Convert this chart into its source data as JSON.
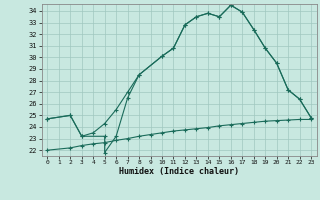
{
  "title": "",
  "xlabel": "Humidex (Indice chaleur)",
  "xlim": [
    -0.5,
    23.5
  ],
  "ylim": [
    21.5,
    34.6
  ],
  "xticks": [
    0,
    1,
    2,
    3,
    4,
    5,
    6,
    7,
    8,
    9,
    10,
    11,
    12,
    13,
    14,
    15,
    16,
    17,
    18,
    19,
    20,
    21,
    22,
    23
  ],
  "yticks": [
    22,
    23,
    24,
    25,
    26,
    27,
    28,
    29,
    30,
    31,
    32,
    33,
    34
  ],
  "background_color": "#c8e8e0",
  "grid_color": "#a0c8c0",
  "line_color": "#1a6b5a",
  "line1_x": [
    0,
    2,
    3,
    5,
    5,
    6,
    7,
    8,
    10,
    11,
    12,
    13,
    14,
    15,
    16,
    17,
    18,
    19,
    20,
    21,
    22,
    23
  ],
  "line1_y": [
    24.7,
    25.0,
    23.2,
    23.2,
    21.8,
    23.2,
    26.5,
    28.5,
    30.1,
    30.8,
    32.8,
    33.5,
    33.8,
    33.5,
    34.5,
    33.9,
    32.4,
    30.8,
    29.5,
    27.2,
    26.4,
    24.8
  ],
  "line2_x": [
    0,
    2,
    3,
    4,
    5,
    6,
    7,
    8,
    10,
    11,
    12,
    13,
    14,
    15,
    16,
    17,
    18,
    19,
    20,
    21,
    22,
    23
  ],
  "line2_y": [
    24.7,
    25.0,
    23.2,
    23.5,
    24.3,
    25.5,
    27.0,
    28.5,
    30.1,
    30.8,
    32.8,
    33.5,
    33.8,
    33.5,
    34.5,
    33.9,
    32.4,
    30.8,
    29.5,
    27.2,
    26.4,
    24.8
  ],
  "line3_x": [
    0,
    2,
    3,
    4,
    5,
    6,
    7,
    8,
    9,
    10,
    11,
    12,
    13,
    14,
    15,
    16,
    17,
    18,
    19,
    20,
    21,
    22,
    23
  ],
  "line3_y": [
    22.0,
    22.2,
    22.4,
    22.55,
    22.65,
    22.85,
    23.0,
    23.2,
    23.35,
    23.5,
    23.65,
    23.75,
    23.85,
    23.95,
    24.1,
    24.2,
    24.3,
    24.4,
    24.5,
    24.55,
    24.6,
    24.65,
    24.65
  ]
}
